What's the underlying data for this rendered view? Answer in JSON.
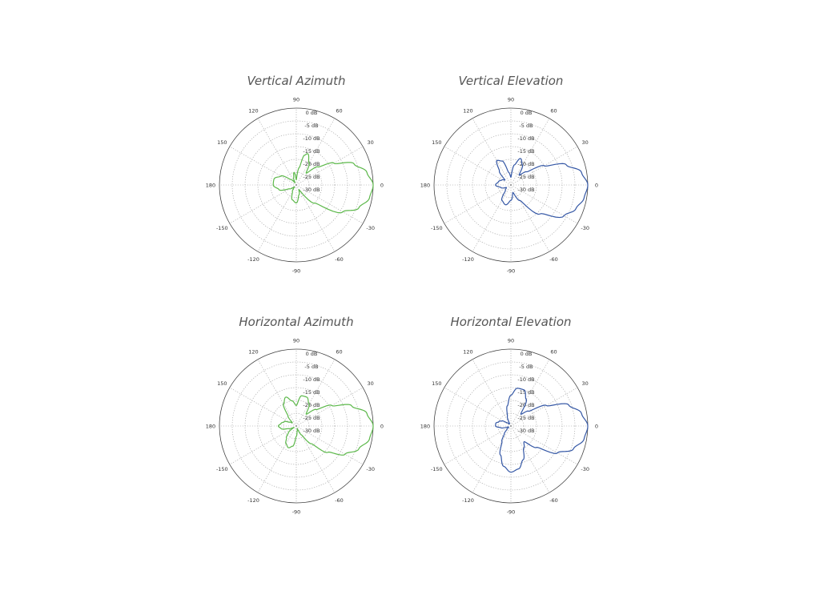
{
  "chart_data": [
    {
      "type": "polar-line",
      "title": "Vertical Azimuth",
      "r_unit": "dB",
      "r_range": [
        -30,
        0
      ],
      "radial_labels": [
        "0 dB",
        "-5 dB",
        "-10 dB",
        "-15 dB",
        "-20 dB",
        "-25 dB",
        "-30 dB"
      ],
      "angle_labels": [
        "0",
        "30",
        "60",
        "90",
        "120",
        "150",
        "180",
        "-150",
        "-120",
        "-90",
        "-60",
        "-30"
      ],
      "angle_ticks": [
        0,
        30,
        60,
        90,
        120,
        150,
        180,
        -150,
        -120,
        -90,
        -60,
        -30
      ],
      "grid": true,
      "series": [
        {
          "color": "#5cb84a",
          "theta": [
            -180,
            -165,
            -150,
            -135,
            -120,
            -105,
            -90,
            -75,
            -60,
            -45,
            -30,
            -20,
            -10,
            0,
            10,
            20,
            30,
            40,
            50,
            60,
            70,
            75,
            80,
            90,
            100,
            110,
            120,
            135,
            150,
            165,
            180
          ],
          "r_db": [
            -21,
            -23,
            -27,
            -29,
            -27,
            -24,
            -23,
            -26,
            -28,
            -20,
            -9,
            -4,
            -1,
            0,
            -2,
            -6,
            -13,
            -19,
            -24,
            -20,
            -17,
            -18,
            -23,
            -28,
            -25,
            -27,
            -29,
            -27,
            -23,
            -21,
            -21
          ]
        }
      ]
    },
    {
      "type": "polar-line",
      "title": "Vertical Elevation",
      "r_unit": "dB",
      "r_range": [
        -30,
        0
      ],
      "radial_labels": [
        "0 dB",
        "-5 dB",
        "-10 dB",
        "-15 dB",
        "-20 dB",
        "-25 dB",
        "-30 dB"
      ],
      "angle_labels": [
        "0",
        "30",
        "60",
        "90",
        "120",
        "150",
        "180",
        "-150",
        "-120",
        "-90",
        "-60",
        "-30"
      ],
      "angle_ticks": [
        0,
        30,
        60,
        90,
        120,
        150,
        180,
        -150,
        -120,
        -90,
        -60,
        -30
      ],
      "grid": true,
      "series": [
        {
          "color": "#3457a5",
          "theta": [
            -180,
            -165,
            -150,
            -135,
            -120,
            -105,
            -90,
            -75,
            -60,
            -45,
            -30,
            -20,
            -10,
            0,
            10,
            20,
            30,
            40,
            50,
            60,
            70,
            80,
            90,
            100,
            110,
            120,
            130,
            140,
            150,
            165,
            180
          ],
          "r_db": [
            -24,
            -26,
            -28,
            -27,
            -23,
            -22,
            -24,
            -27,
            -23,
            -14,
            -6,
            -3,
            -1,
            0,
            -2,
            -7,
            -15,
            -22,
            -25,
            -21,
            -19,
            -22,
            -27,
            -25,
            -20,
            -19,
            -23,
            -27,
            -26,
            -25,
            -24
          ]
        }
      ]
    },
    {
      "type": "polar-line",
      "title": "Horizontal Azimuth",
      "r_unit": "dB",
      "r_range": [
        -30,
        0
      ],
      "radial_labels": [
        "0 dB",
        "-5 dB",
        "-10 dB",
        "-15 dB",
        "-20 dB",
        "-25 dB",
        "-30 dB"
      ],
      "angle_labels": [
        "0",
        "30",
        "60",
        "90",
        "120",
        "150",
        "180",
        "-150",
        "-120",
        "-90",
        "-60",
        "-30"
      ],
      "angle_ticks": [
        0,
        30,
        60,
        90,
        120,
        150,
        180,
        -150,
        -120,
        -90,
        -60,
        -30
      ],
      "grid": true,
      "series": [
        {
          "color": "#5cb84a",
          "theta": [
            -180,
            -170,
            -160,
            -150,
            -140,
            -130,
            -120,
            -110,
            -100,
            -90,
            -80,
            -70,
            -60,
            -50,
            -40,
            -30,
            -20,
            -10,
            0,
            10,
            20,
            30,
            40,
            50,
            60,
            70,
            80,
            90,
            100,
            110,
            120,
            130,
            140,
            150,
            160,
            170,
            180
          ],
          "r_db": [
            -23,
            -24,
            -27,
            -29,
            -26,
            -24,
            -22,
            -21,
            -22,
            -26,
            -28,
            -29,
            -26,
            -21,
            -14,
            -8,
            -4,
            -1,
            0,
            -2,
            -7,
            -14,
            -20,
            -24,
            -20,
            -18,
            -18,
            -22,
            -20,
            -18,
            -20,
            -25,
            -28,
            -27,
            -25,
            -24,
            -23
          ]
        }
      ]
    },
    {
      "type": "polar-line",
      "title": "Horizontal Elevation",
      "r_unit": "dB",
      "r_range": [
        -30,
        0
      ],
      "radial_labels": [
        "0 dB",
        "-5 dB",
        "-10 dB",
        "-15 dB",
        "-20 dB",
        "-25 dB",
        "-30 dB"
      ],
      "angle_labels": [
        "0",
        "30",
        "60",
        "90",
        "120",
        "150",
        "180",
        "-150",
        "-120",
        "-90",
        "-60",
        "-30"
      ],
      "angle_ticks": [
        0,
        30,
        60,
        90,
        120,
        150,
        180,
        -150,
        -120,
        -90,
        -60,
        -30
      ],
      "grid": true,
      "series": [
        {
          "color": "#3457a5",
          "theta": [
            -180,
            -170,
            -160,
            -150,
            -140,
            -130,
            -120,
            -110,
            -100,
            -90,
            -80,
            -70,
            -60,
            -50,
            -40,
            -30,
            -20,
            -10,
            0,
            10,
            20,
            30,
            40,
            50,
            60,
            70,
            80,
            90,
            100,
            110,
            120,
            130,
            140,
            150,
            160,
            170,
            180
          ],
          "r_db": [
            -24,
            -26,
            -29,
            -29,
            -28,
            -26,
            -23,
            -18,
            -14,
            -12,
            -13,
            -16,
            -20,
            -22,
            -17,
            -9,
            -4,
            -1,
            0,
            -2,
            -6,
            -14,
            -21,
            -24,
            -18,
            -15,
            -15,
            -18,
            -22,
            -26,
            -29,
            -29,
            -28,
            -26,
            -25,
            -24,
            -24
          ]
        }
      ]
    }
  ]
}
